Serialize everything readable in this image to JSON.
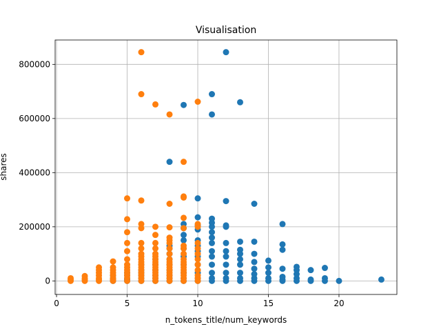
{
  "chart_data": {
    "type": "scatter",
    "title": "Visualisation",
    "xlabel": "n_tokens_title/num_keywords",
    "ylabel": "shares",
    "xlim": [
      -0.1,
      24.1
    ],
    "ylim": [
      -50000,
      890000
    ],
    "grid": true,
    "x_ticks": [
      0,
      5,
      10,
      15,
      20
    ],
    "x_tick_labels": [
      "0",
      "5",
      "10",
      "15",
      "20"
    ],
    "y_ticks": [
      0,
      200000,
      400000,
      600000,
      800000
    ],
    "y_tick_labels": [
      "0",
      "200000",
      "400000",
      "600000",
      "800000"
    ],
    "series": [
      {
        "color": "#1f77b4",
        "points": [
          [
            4,
            0
          ],
          [
            4,
            5000
          ],
          [
            4,
            10000
          ],
          [
            4,
            20000
          ],
          [
            5,
            0
          ],
          [
            5,
            5000
          ],
          [
            5,
            10000
          ],
          [
            5,
            20000
          ],
          [
            5,
            30000
          ],
          [
            6,
            0
          ],
          [
            6,
            10000
          ],
          [
            6,
            20000
          ],
          [
            6,
            30000
          ],
          [
            6,
            40000
          ],
          [
            6,
            60000
          ],
          [
            7,
            0
          ],
          [
            7,
            10000
          ],
          [
            7,
            20000
          ],
          [
            7,
            40000
          ],
          [
            7,
            60000
          ],
          [
            7,
            80000
          ],
          [
            8,
            0
          ],
          [
            8,
            10000
          ],
          [
            8,
            20000
          ],
          [
            8,
            40000
          ],
          [
            8,
            60000
          ],
          [
            8,
            80000
          ],
          [
            8,
            100000
          ],
          [
            8,
            120000
          ],
          [
            8,
            130000
          ],
          [
            8,
            440000
          ],
          [
            9,
            0
          ],
          [
            9,
            10000
          ],
          [
            9,
            30000
          ],
          [
            9,
            60000
          ],
          [
            9,
            90000
          ],
          [
            9,
            120000
          ],
          [
            9,
            150000
          ],
          [
            9,
            170000
          ],
          [
            9,
            195000
          ],
          [
            9,
            210000
          ],
          [
            9,
            650000
          ],
          [
            10,
            0
          ],
          [
            10,
            10000
          ],
          [
            10,
            30000
          ],
          [
            10,
            60000
          ],
          [
            10,
            90000
          ],
          [
            10,
            110000
          ],
          [
            10,
            130000
          ],
          [
            10,
            150000
          ],
          [
            10,
            190000
          ],
          [
            10,
            205000
          ],
          [
            10,
            235000
          ],
          [
            10,
            305000
          ],
          [
            11,
            0
          ],
          [
            11,
            10000
          ],
          [
            11,
            30000
          ],
          [
            11,
            60000
          ],
          [
            11,
            90000
          ],
          [
            11,
            110000
          ],
          [
            11,
            140000
          ],
          [
            11,
            160000
          ],
          [
            11,
            180000
          ],
          [
            11,
            200000
          ],
          [
            11,
            215000
          ],
          [
            11,
            230000
          ],
          [
            11,
            615000
          ],
          [
            11,
            690000
          ],
          [
            12,
            0
          ],
          [
            12,
            10000
          ],
          [
            12,
            30000
          ],
          [
            12,
            60000
          ],
          [
            12,
            90000
          ],
          [
            12,
            110000
          ],
          [
            12,
            140000
          ],
          [
            12,
            200000
          ],
          [
            12,
            205000
          ],
          [
            12,
            295000
          ],
          [
            12,
            845000
          ],
          [
            13,
            0
          ],
          [
            13,
            10000
          ],
          [
            13,
            30000
          ],
          [
            13,
            60000
          ],
          [
            13,
            80000
          ],
          [
            13,
            100000
          ],
          [
            13,
            115000
          ],
          [
            13,
            145000
          ],
          [
            13,
            660000
          ],
          [
            14,
            0
          ],
          [
            14,
            10000
          ],
          [
            14,
            25000
          ],
          [
            14,
            45000
          ],
          [
            14,
            70000
          ],
          [
            14,
            100000
          ],
          [
            14,
            145000
          ],
          [
            14,
            285000
          ],
          [
            15,
            0
          ],
          [
            15,
            10000
          ],
          [
            15,
            30000
          ],
          [
            15,
            50000
          ],
          [
            15,
            75000
          ],
          [
            16,
            0
          ],
          [
            16,
            5000
          ],
          [
            16,
            15000
          ],
          [
            16,
            45000
          ],
          [
            16,
            115000
          ],
          [
            16,
            135000
          ],
          [
            16,
            210000
          ],
          [
            17,
            0
          ],
          [
            17,
            10000
          ],
          [
            17,
            25000
          ],
          [
            17,
            40000
          ],
          [
            17,
            52000
          ],
          [
            18,
            0
          ],
          [
            18,
            5000
          ],
          [
            18,
            40000
          ],
          [
            19,
            0
          ],
          [
            19,
            10000
          ],
          [
            19,
            48000
          ],
          [
            20,
            0
          ],
          [
            23,
            5000
          ]
        ]
      },
      {
        "color": "#ff7f0e",
        "points": [
          [
            1,
            0
          ],
          [
            1,
            5000
          ],
          [
            1,
            10000
          ],
          [
            2,
            0
          ],
          [
            2,
            5000
          ],
          [
            2,
            10000
          ],
          [
            2,
            18000
          ],
          [
            3,
            0
          ],
          [
            3,
            5000
          ],
          [
            3,
            10000
          ],
          [
            3,
            20000
          ],
          [
            3,
            30000
          ],
          [
            3,
            40000
          ],
          [
            3,
            50000
          ],
          [
            4,
            0
          ],
          [
            4,
            5000
          ],
          [
            4,
            10000
          ],
          [
            4,
            20000
          ],
          [
            4,
            30000
          ],
          [
            4,
            40000
          ],
          [
            4,
            50000
          ],
          [
            4,
            72000
          ],
          [
            5,
            0
          ],
          [
            5,
            10000
          ],
          [
            5,
            20000
          ],
          [
            5,
            30000
          ],
          [
            5,
            40000
          ],
          [
            5,
            50000
          ],
          [
            5,
            60000
          ],
          [
            5,
            80000
          ],
          [
            5,
            110000
          ],
          [
            5,
            140000
          ],
          [
            5,
            180000
          ],
          [
            5,
            228000
          ],
          [
            5,
            305000
          ],
          [
            6,
            0
          ],
          [
            6,
            10000
          ],
          [
            6,
            20000
          ],
          [
            6,
            30000
          ],
          [
            6,
            40000
          ],
          [
            6,
            50000
          ],
          [
            6,
            60000
          ],
          [
            6,
            70000
          ],
          [
            6,
            80000
          ],
          [
            6,
            90000
          ],
          [
            6,
            100000
          ],
          [
            6,
            120000
          ],
          [
            6,
            140000
          ],
          [
            6,
            195000
          ],
          [
            6,
            210000
          ],
          [
            6,
            297000
          ],
          [
            6,
            690000
          ],
          [
            6,
            845000
          ],
          [
            7,
            0
          ],
          [
            7,
            10000
          ],
          [
            7,
            20000
          ],
          [
            7,
            30000
          ],
          [
            7,
            40000
          ],
          [
            7,
            50000
          ],
          [
            7,
            60000
          ],
          [
            7,
            70000
          ],
          [
            7,
            80000
          ],
          [
            7,
            90000
          ],
          [
            7,
            100000
          ],
          [
            7,
            120000
          ],
          [
            7,
            140000
          ],
          [
            7,
            170000
          ],
          [
            7,
            200000
          ],
          [
            7,
            652000
          ],
          [
            8,
            0
          ],
          [
            8,
            10000
          ],
          [
            8,
            20000
          ],
          [
            8,
            30000
          ],
          [
            8,
            40000
          ],
          [
            8,
            50000
          ],
          [
            8,
            60000
          ],
          [
            8,
            70000
          ],
          [
            8,
            80000
          ],
          [
            8,
            100000
          ],
          [
            8,
            120000
          ],
          [
            8,
            140000
          ],
          [
            8,
            150000
          ],
          [
            8,
            160000
          ],
          [
            8,
            198000
          ],
          [
            8,
            285000
          ],
          [
            8,
            615000
          ],
          [
            9,
            0
          ],
          [
            9,
            10000
          ],
          [
            9,
            20000
          ],
          [
            9,
            30000
          ],
          [
            9,
            40000
          ],
          [
            9,
            50000
          ],
          [
            9,
            60000
          ],
          [
            9,
            70000
          ],
          [
            9,
            80000
          ],
          [
            9,
            100000
          ],
          [
            9,
            120000
          ],
          [
            9,
            130000
          ],
          [
            9,
            195000
          ],
          [
            9,
            233000
          ],
          [
            9,
            308000
          ],
          [
            9,
            312000
          ],
          [
            9,
            440000
          ],
          [
            10,
            0
          ],
          [
            10,
            10000
          ],
          [
            10,
            20000
          ],
          [
            10,
            40000
          ],
          [
            10,
            60000
          ],
          [
            10,
            80000
          ],
          [
            10,
            100000
          ],
          [
            10,
            120000
          ],
          [
            10,
            140000
          ],
          [
            10,
            200000
          ],
          [
            10,
            210000
          ],
          [
            10,
            662000
          ]
        ]
      }
    ]
  }
}
